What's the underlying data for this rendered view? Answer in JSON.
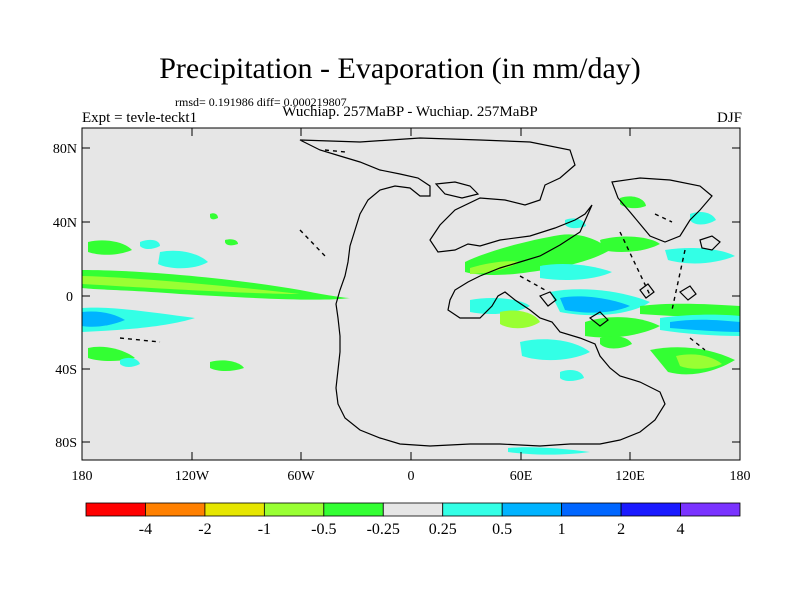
{
  "title": "Precipitation - Evaporation (in mm/day)",
  "stats": "rmsd= 0.191986 diff= 0.000219807",
  "expt": "Expt = tevle-teckt1",
  "subtitle": "Wuchiap. 257MaBP - Wuchiap. 257MaBP",
  "season": "DJF",
  "lat_ticks": [
    "80N",
    "40N",
    "0",
    "40S",
    "80S"
  ],
  "lon_ticks": [
    "180",
    "120W",
    "60W",
    "0",
    "60E",
    "120E",
    "180"
  ],
  "colorbar": {
    "colors": [
      "#ff0000",
      "#ff8000",
      "#e6e600",
      "#99ff33",
      "#33ff33",
      "#e6e6e6",
      "#33ffe6",
      "#00b3ff",
      "#0066ff",
      "#1a1aff",
      "#7a33ff"
    ],
    "labels": [
      "-4",
      "-2",
      "-1",
      "-0.5",
      "-0.25",
      "0.25",
      "0.5",
      "1",
      "2",
      "4"
    ]
  },
  "colors": {
    "background": "#e6e6e6",
    "coast": "#000000"
  }
}
